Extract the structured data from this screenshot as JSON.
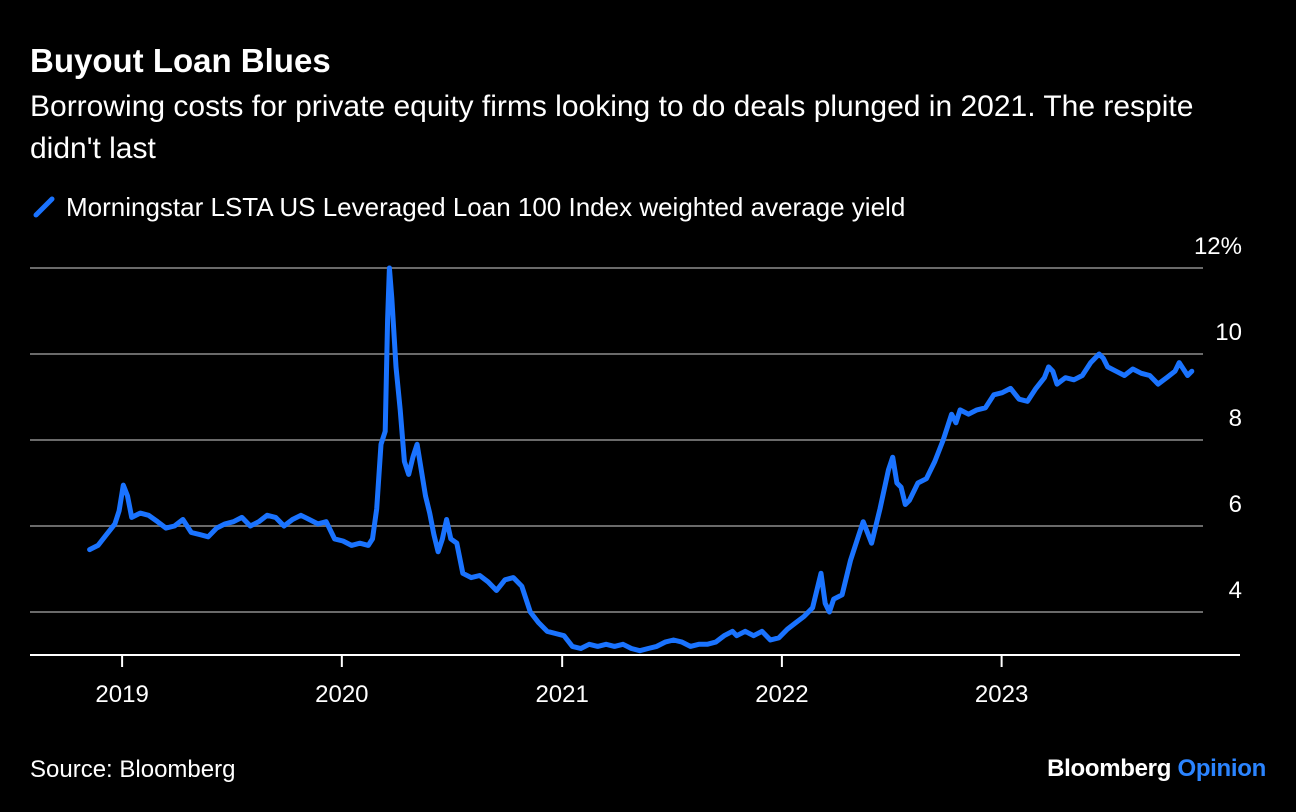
{
  "header": {
    "title": "Buyout Loan Blues",
    "subtitle": "Borrowing costs for private equity firms looking to do deals plunged in 2021. The respite didn't last"
  },
  "footer": {
    "source": "Source: Bloomberg",
    "brand_name": "Bloomberg",
    "brand_section": "Opinion"
  },
  "colors": {
    "line": "#1a73ff",
    "grid": "#6a6a6a",
    "background": "#000000",
    "text": "#ffffff"
  },
  "chart_data": {
    "type": "line",
    "title": "Buyout Loan Blues",
    "xlabel": "",
    "ylabel": "",
    "ylim": [
      3,
      12
    ],
    "xlim": [
      "2018-08-01",
      "2024-02-01"
    ],
    "y_ticks": [
      4,
      6,
      8,
      10,
      12
    ],
    "y_tick_labels": [
      "4",
      "6",
      "8",
      "10",
      "12%"
    ],
    "x_ticks": [
      "2019-01-01",
      "2020-01-01",
      "2021-01-01",
      "2022-01-01",
      "2023-01-01"
    ],
    "x_tick_labels": [
      "2019",
      "2020",
      "2021",
      "2022",
      "2023"
    ],
    "grid": "horizontal",
    "legend_position": "top-left",
    "series": [
      {
        "name": "Morningstar LSTA US Leveraged Loan 100 Index weighted average yield",
        "color": "#1a73ff",
        "points": [
          [
            "2018-11-08",
            5.45
          ],
          [
            "2018-11-22",
            5.55
          ],
          [
            "2018-12-06",
            5.8
          ],
          [
            "2018-12-20",
            6.05
          ],
          [
            "2018-12-27",
            6.35
          ],
          [
            "2019-01-03",
            6.95
          ],
          [
            "2019-01-10",
            6.7
          ],
          [
            "2019-01-17",
            6.2
          ],
          [
            "2019-01-31",
            6.3
          ],
          [
            "2019-02-14",
            6.25
          ],
          [
            "2019-03-01",
            6.1
          ],
          [
            "2019-03-15",
            5.95
          ],
          [
            "2019-03-29",
            6.0
          ],
          [
            "2019-04-12",
            6.15
          ],
          [
            "2019-04-26",
            5.85
          ],
          [
            "2019-05-10",
            5.8
          ],
          [
            "2019-05-24",
            5.75
          ],
          [
            "2019-06-07",
            5.95
          ],
          [
            "2019-06-21",
            6.05
          ],
          [
            "2019-07-05",
            6.1
          ],
          [
            "2019-07-19",
            6.2
          ],
          [
            "2019-08-02",
            6.0
          ],
          [
            "2019-08-16",
            6.1
          ],
          [
            "2019-08-30",
            6.25
          ],
          [
            "2019-09-13",
            6.2
          ],
          [
            "2019-09-27",
            6.0
          ],
          [
            "2019-10-11",
            6.15
          ],
          [
            "2019-10-25",
            6.25
          ],
          [
            "2019-11-08",
            6.15
          ],
          [
            "2019-11-22",
            6.05
          ],
          [
            "2019-12-06",
            6.1
          ],
          [
            "2019-12-20",
            5.7
          ],
          [
            "2020-01-03",
            5.65
          ],
          [
            "2020-01-17",
            5.55
          ],
          [
            "2020-01-31",
            5.6
          ],
          [
            "2020-02-14",
            5.55
          ],
          [
            "2020-02-21",
            5.7
          ],
          [
            "2020-02-28",
            6.4
          ],
          [
            "2020-03-06",
            7.9
          ],
          [
            "2020-03-13",
            8.2
          ],
          [
            "2020-03-17",
            10.8
          ],
          [
            "2020-03-20",
            12.0
          ],
          [
            "2020-03-24",
            11.3
          ],
          [
            "2020-03-31",
            9.7
          ],
          [
            "2020-04-07",
            8.7
          ],
          [
            "2020-04-14",
            7.5
          ],
          [
            "2020-04-21",
            7.2
          ],
          [
            "2020-04-28",
            7.6
          ],
          [
            "2020-05-05",
            7.9
          ],
          [
            "2020-05-12",
            7.3
          ],
          [
            "2020-05-19",
            6.7
          ],
          [
            "2020-05-26",
            6.3
          ],
          [
            "2020-06-02",
            5.8
          ],
          [
            "2020-06-09",
            5.4
          ],
          [
            "2020-06-16",
            5.7
          ],
          [
            "2020-06-23",
            6.15
          ],
          [
            "2020-06-30",
            5.7
          ],
          [
            "2020-07-10",
            5.6
          ],
          [
            "2020-07-20",
            4.9
          ],
          [
            "2020-08-03",
            4.8
          ],
          [
            "2020-08-17",
            4.85
          ],
          [
            "2020-08-31",
            4.7
          ],
          [
            "2020-09-14",
            4.5
          ],
          [
            "2020-09-28",
            4.75
          ],
          [
            "2020-10-12",
            4.8
          ],
          [
            "2020-10-26",
            4.6
          ],
          [
            "2020-11-09",
            4.0
          ],
          [
            "2020-11-23",
            3.75
          ],
          [
            "2020-12-07",
            3.55
          ],
          [
            "2020-12-21",
            3.5
          ],
          [
            "2021-01-04",
            3.45
          ],
          [
            "2021-01-18",
            3.2
          ],
          [
            "2021-02-01",
            3.15
          ],
          [
            "2021-02-15",
            3.25
          ],
          [
            "2021-03-01",
            3.2
          ],
          [
            "2021-03-15",
            3.25
          ],
          [
            "2021-03-29",
            3.2
          ],
          [
            "2021-04-12",
            3.25
          ],
          [
            "2021-04-26",
            3.15
          ],
          [
            "2021-05-10",
            3.1
          ],
          [
            "2021-05-24",
            3.15
          ],
          [
            "2021-06-07",
            3.2
          ],
          [
            "2021-06-21",
            3.3
          ],
          [
            "2021-07-05",
            3.35
          ],
          [
            "2021-07-19",
            3.3
          ],
          [
            "2021-08-02",
            3.2
          ],
          [
            "2021-08-16",
            3.25
          ],
          [
            "2021-08-30",
            3.25
          ],
          [
            "2021-09-13",
            3.3
          ],
          [
            "2021-09-27",
            3.45
          ],
          [
            "2021-10-11",
            3.55
          ],
          [
            "2021-10-18",
            3.45
          ],
          [
            "2021-11-01",
            3.55
          ],
          [
            "2021-11-15",
            3.45
          ],
          [
            "2021-11-29",
            3.55
          ],
          [
            "2021-12-13",
            3.35
          ],
          [
            "2021-12-27",
            3.4
          ],
          [
            "2022-01-10",
            3.6
          ],
          [
            "2022-01-24",
            3.75
          ],
          [
            "2022-02-07",
            3.9
          ],
          [
            "2022-02-21",
            4.1
          ],
          [
            "2022-03-07",
            4.9
          ],
          [
            "2022-03-14",
            4.2
          ],
          [
            "2022-03-21",
            4.0
          ],
          [
            "2022-03-28",
            4.3
          ],
          [
            "2022-04-11",
            4.4
          ],
          [
            "2022-04-25",
            5.2
          ],
          [
            "2022-05-09",
            5.8
          ],
          [
            "2022-05-16",
            6.1
          ],
          [
            "2022-05-30",
            5.6
          ],
          [
            "2022-06-13",
            6.4
          ],
          [
            "2022-06-27",
            7.3
          ],
          [
            "2022-07-04",
            7.6
          ],
          [
            "2022-07-11",
            7.0
          ],
          [
            "2022-07-18",
            6.9
          ],
          [
            "2022-07-25",
            6.5
          ],
          [
            "2022-08-01",
            6.6
          ],
          [
            "2022-08-15",
            7.0
          ],
          [
            "2022-08-29",
            7.1
          ],
          [
            "2022-09-12",
            7.5
          ],
          [
            "2022-09-26",
            8.0
          ],
          [
            "2022-10-10",
            8.6
          ],
          [
            "2022-10-17",
            8.4
          ],
          [
            "2022-10-24",
            8.7
          ],
          [
            "2022-11-07",
            8.6
          ],
          [
            "2022-11-21",
            8.7
          ],
          [
            "2022-12-05",
            8.75
          ],
          [
            "2022-12-19",
            9.05
          ],
          [
            "2023-01-02",
            9.1
          ],
          [
            "2023-01-16",
            9.2
          ],
          [
            "2023-01-30",
            8.95
          ],
          [
            "2023-02-13",
            8.9
          ],
          [
            "2023-02-27",
            9.2
          ],
          [
            "2023-03-13",
            9.45
          ],
          [
            "2023-03-20",
            9.7
          ],
          [
            "2023-03-27",
            9.6
          ],
          [
            "2023-04-03",
            9.3
          ],
          [
            "2023-04-17",
            9.45
          ],
          [
            "2023-05-01",
            9.4
          ],
          [
            "2023-05-15",
            9.5
          ],
          [
            "2023-05-29",
            9.8
          ],
          [
            "2023-06-12",
            10.0
          ],
          [
            "2023-06-19",
            9.9
          ],
          [
            "2023-06-26",
            9.7
          ],
          [
            "2023-07-10",
            9.6
          ],
          [
            "2023-07-24",
            9.5
          ],
          [
            "2023-08-07",
            9.65
          ],
          [
            "2023-08-21",
            9.55
          ],
          [
            "2023-09-04",
            9.5
          ],
          [
            "2023-09-18",
            9.3
          ],
          [
            "2023-10-02",
            9.45
          ],
          [
            "2023-10-16",
            9.6
          ],
          [
            "2023-10-23",
            9.8
          ],
          [
            "2023-11-06",
            9.5
          ],
          [
            "2023-11-13",
            9.6
          ]
        ]
      }
    ]
  }
}
